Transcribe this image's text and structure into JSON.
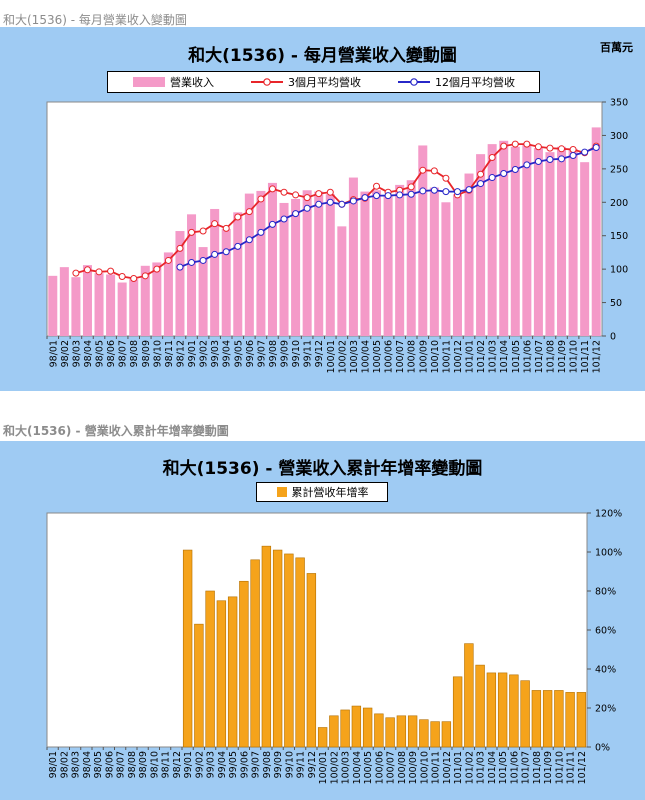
{
  "monthly": {
    "section_title": "和大(1536) - 每月營業收入變動圖",
    "chart_title": "和大(1536) - 每月營業收入變動圖",
    "unit": "百萬元",
    "colors": {
      "bars": "#f49ac8",
      "ma3": "#e8252a",
      "ma12": "#2727c8",
      "panel": "#9fcbf3"
    },
    "legend_icons": [
      "pink-bar-swatch-icon",
      "red-line-marker-icon",
      "blue-line-marker-icon"
    ],
    "chart_data": {
      "type": "bar",
      "categories": [
        "98/01",
        "98/02",
        "98/03",
        "98/04",
        "98/05",
        "98/06",
        "98/07",
        "98/08",
        "98/09",
        "98/10",
        "98/11",
        "98/12",
        "99/01",
        "99/02",
        "99/03",
        "99/04",
        "99/05",
        "99/06",
        "99/07",
        "99/08",
        "99/09",
        "99/10",
        "99/11",
        "99/12",
        "100/01",
        "100/02",
        "100/03",
        "100/04",
        "100/05",
        "100/06",
        "100/07",
        "100/08",
        "100/09",
        "100/10",
        "100/11",
        "100/12",
        "101/01",
        "101/02",
        "101/03",
        "101/04",
        "101/05",
        "101/06",
        "101/07",
        "101/08",
        "101/09",
        "101/10",
        "101/11",
        "101/12"
      ],
      "series": [
        {
          "name": "營業收入",
          "type": "bar",
          "values": [
            90,
            103,
            88,
            106,
            94,
            92,
            80,
            85,
            105,
            110,
            125,
            157,
            182,
            133,
            190,
            160,
            185,
            213,
            217,
            229,
            199,
            205,
            218,
            216,
            212,
            164,
            237,
            216,
            218,
            210,
            226,
            233,
            285,
            222,
            200,
            212,
            243,
            272,
            287,
            292,
            283,
            287,
            281,
            275,
            283,
            280,
            260,
            312
          ]
        },
        {
          "name": "3個月平均營收",
          "type": "line",
          "values": [
            null,
            null,
            94,
            99,
            96,
            97,
            89,
            86,
            90,
            100,
            113,
            131,
            155,
            157,
            168,
            161,
            178,
            186,
            205,
            220,
            215,
            211,
            207,
            213,
            215,
            197,
            204,
            206,
            224,
            215,
            218,
            223,
            248,
            247,
            236,
            211,
            218,
            242,
            267,
            284,
            287,
            287,
            283,
            281,
            280,
            279,
            274,
            284
          ]
        },
        {
          "name": "12個月平均營收",
          "type": "line",
          "values": [
            null,
            null,
            null,
            null,
            null,
            null,
            null,
            null,
            null,
            null,
            null,
            103,
            110,
            113,
            122,
            126,
            134,
            144,
            155,
            167,
            175,
            183,
            191,
            197,
            200,
            197,
            202,
            207,
            210,
            210,
            211,
            212,
            217,
            218,
            216,
            216,
            219,
            228,
            237,
            243,
            249,
            256,
            261,
            264,
            265,
            270,
            275,
            282
          ]
        }
      ],
      "ylim": [
        0,
        350
      ],
      "yticks": [
        0,
        50,
        100,
        150,
        200,
        250,
        300,
        350
      ],
      "grid": false,
      "legend_position": "top"
    }
  },
  "cumulative": {
    "section_title": "和大(1536) -  營業收入累計年增率變動圖",
    "chart_title": "和大(1536) -  營業收入累計年增率變動圖",
    "colors": {
      "bars": "#f5a31b",
      "panel": "#9fcbf3"
    },
    "legend_icons": [
      "orange-bar-swatch-icon"
    ],
    "chart_data": {
      "type": "bar",
      "categories": [
        "98/01",
        "98/02",
        "98/03",
        "98/04",
        "98/05",
        "98/06",
        "98/07",
        "98/08",
        "98/09",
        "98/10",
        "98/11",
        "98/12",
        "99/01",
        "99/02",
        "99/03",
        "99/04",
        "99/05",
        "99/06",
        "99/07",
        "99/08",
        "99/09",
        "99/10",
        "99/11",
        "99/12",
        "100/01",
        "100/02",
        "100/03",
        "100/04",
        "100/05",
        "100/06",
        "100/07",
        "100/08",
        "100/09",
        "100/10",
        "100/11",
        "100/12",
        "101/01",
        "101/02",
        "101/03",
        "101/04",
        "101/05",
        "101/06",
        "101/07",
        "101/08",
        "101/09",
        "101/10",
        "101/11",
        "101/12"
      ],
      "series": [
        {
          "name": "累計營收年增率",
          "values": [
            null,
            null,
            null,
            null,
            null,
            null,
            null,
            null,
            null,
            null,
            null,
            null,
            101,
            63,
            80,
            75,
            77,
            85,
            96,
            103,
            101,
            99,
            97,
            89,
            10,
            16,
            19,
            21,
            20,
            17,
            15,
            16,
            16,
            14,
            13,
            13,
            36,
            53,
            42,
            38,
            38,
            37,
            34,
            29,
            29,
            29,
            28,
            28
          ]
        }
      ],
      "ylim": [
        0,
        120
      ],
      "yticks": [
        "0%",
        "20%",
        "40%",
        "60%",
        "80%",
        "100%",
        "120%"
      ],
      "grid": false,
      "legend_position": "top"
    }
  }
}
